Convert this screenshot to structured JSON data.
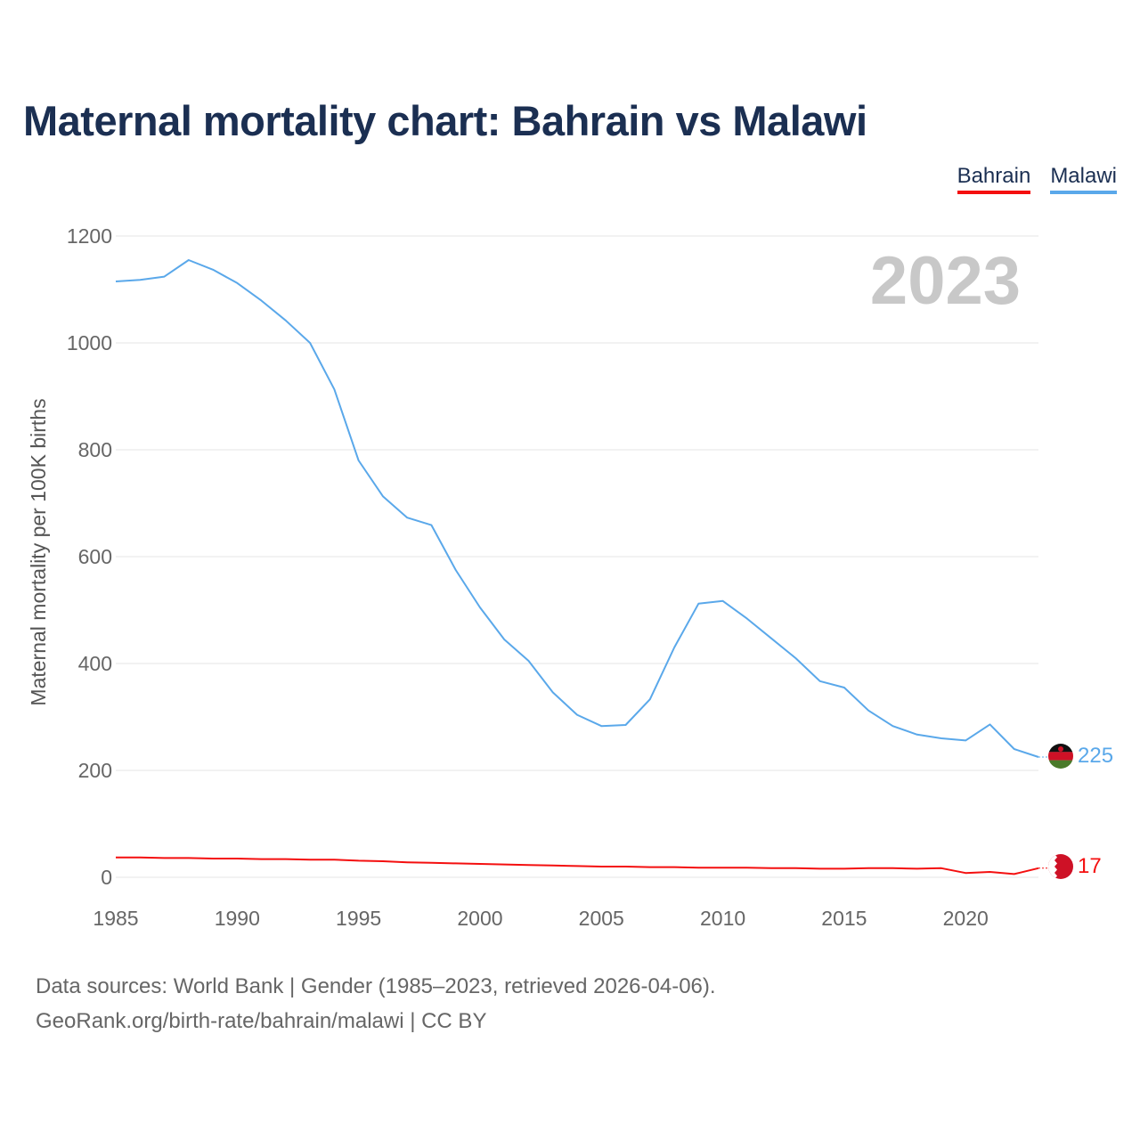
{
  "chart_data": {
    "type": "line",
    "title": "Maternal mortality chart: Bahrain vs Malawi",
    "ylabel": "Maternal mortality per 100K births",
    "xlabel": "",
    "xlim": [
      1985,
      2023
    ],
    "ylim": [
      0,
      1200
    ],
    "yticks": [
      0,
      200,
      400,
      600,
      800,
      1000,
      1200
    ],
    "xticks": [
      1985,
      1990,
      1995,
      2000,
      2005,
      2010,
      2015,
      2020
    ],
    "year_label": "2023",
    "grid": true,
    "legend_position": "top-right",
    "x": [
      1985,
      1986,
      1987,
      1988,
      1989,
      1990,
      1991,
      1992,
      1993,
      1994,
      1995,
      1996,
      1997,
      1998,
      1999,
      2000,
      2001,
      2002,
      2003,
      2004,
      2005,
      2006,
      2007,
      2008,
      2009,
      2010,
      2011,
      2012,
      2013,
      2014,
      2015,
      2016,
      2017,
      2018,
      2019,
      2020,
      2021,
      2022,
      2023
    ],
    "series": [
      {
        "name": "Bahrain",
        "color": "#f40f0f",
        "end_label": "17",
        "values": [
          37,
          37,
          36,
          36,
          35,
          35,
          34,
          34,
          33,
          33,
          31,
          30,
          28,
          27,
          26,
          25,
          24,
          23,
          22,
          21,
          20,
          20,
          19,
          19,
          18,
          18,
          18,
          17,
          17,
          16,
          16,
          17,
          17,
          16,
          17,
          8,
          10,
          6,
          17
        ]
      },
      {
        "name": "Malawi",
        "color": "#5aa8ea",
        "end_label": "225",
        "values": [
          1115,
          1118,
          1124,
          1155,
          1137,
          1112,
          1079,
          1042,
          1000,
          913,
          780,
          713,
          673,
          659,
          575,
          505,
          445,
          405,
          346,
          304,
          283,
          285,
          333,
          430,
          512,
          517,
          484,
          447,
          410,
          367,
          355,
          312,
          283,
          267,
          260,
          256,
          286,
          240,
          225
        ]
      }
    ]
  },
  "legend": {
    "bahrain": "Bahrain",
    "malawi": "Malawi"
  },
  "footer": {
    "line1": "Data sources: World Bank | Gender (1985–2023, retrieved 2026-04-06).",
    "line2": "GeoRank.org/birth-rate/bahrain/malawi | CC BY"
  },
  "flags": {
    "malawi": "malawi-flag-icon",
    "bahrain": "bahrain-flag-icon"
  }
}
